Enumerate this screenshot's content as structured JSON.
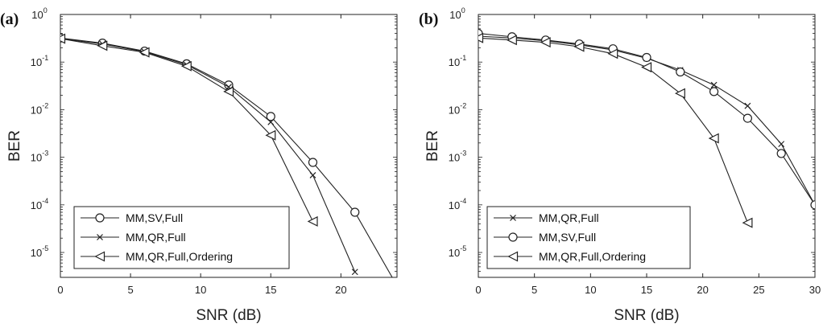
{
  "chart_data": [
    {
      "panel_label": "(a)",
      "type": "line",
      "xlabel": "SNR (dB)",
      "ylabel": "BER",
      "xlim": [
        0,
        24
      ],
      "ylim": [
        3e-06,
        1
      ],
      "yscale": "log",
      "x_ticks": [
        0,
        5,
        10,
        15,
        20
      ],
      "y_ticks": [
        1,
        0.1,
        0.01,
        0.001,
        0.0001,
        1e-05
      ],
      "y_tick_labels": [
        {
          "base": "10",
          "exp": "0"
        },
        {
          "base": "10",
          "exp": "-1"
        },
        {
          "base": "10",
          "exp": "-2"
        },
        {
          "base": "10",
          "exp": "-3"
        },
        {
          "base": "10",
          "exp": "-4"
        },
        {
          "base": "10",
          "exp": "-5"
        }
      ],
      "grid": false,
      "legend_position": "bottom-left",
      "series": [
        {
          "name": "MM,SV,Full",
          "marker": "circle",
          "x": [
            0,
            3,
            6,
            9,
            12,
            15,
            18,
            21,
            24
          ],
          "y": [
            0.32,
            0.25,
            0.17,
            0.092,
            0.033,
            0.0072,
            0.00078,
            7e-05,
            2e-06
          ]
        },
        {
          "name": "MM,QR,Full",
          "marker": "x",
          "x": [
            0,
            3,
            6,
            9,
            12,
            15,
            18,
            21
          ],
          "y": [
            0.31,
            0.24,
            0.165,
            0.088,
            0.03,
            0.0055,
            0.00042,
            3.9e-06
          ]
        },
        {
          "name": "MM,QR,Full,Ordering",
          "marker": "triangle-left",
          "x": [
            0,
            3,
            6,
            9,
            12,
            15,
            18
          ],
          "y": [
            0.31,
            0.22,
            0.16,
            0.082,
            0.024,
            0.0029,
            4.5e-05
          ]
        }
      ]
    },
    {
      "panel_label": "(b)",
      "type": "line",
      "xlabel": "SNR (dB)",
      "ylabel": "BER",
      "xlim": [
        0,
        30
      ],
      "ylim": [
        3e-06,
        1
      ],
      "yscale": "log",
      "x_ticks": [
        0,
        5,
        10,
        15,
        20,
        25,
        30
      ],
      "y_ticks": [
        1,
        0.1,
        0.01,
        0.001,
        0.0001,
        1e-05
      ],
      "y_tick_labels": [
        {
          "base": "10",
          "exp": "0"
        },
        {
          "base": "10",
          "exp": "-1"
        },
        {
          "base": "10",
          "exp": "-2"
        },
        {
          "base": "10",
          "exp": "-3"
        },
        {
          "base": "10",
          "exp": "-4"
        },
        {
          "base": "10",
          "exp": "-5"
        }
      ],
      "grid": false,
      "legend_position": "bottom-left",
      "series": [
        {
          "name": "MM,QR,Full",
          "marker": "x",
          "x": [
            0,
            3,
            6,
            9,
            12,
            15,
            18,
            21,
            24,
            27,
            30
          ],
          "y": [
            0.35,
            0.32,
            0.28,
            0.23,
            0.18,
            0.12,
            0.068,
            0.033,
            0.012,
            0.0019,
            0.0001
          ]
        },
        {
          "name": "MM,SV,Full",
          "marker": "circle",
          "x": [
            0,
            3,
            6,
            9,
            12,
            15,
            18,
            21,
            24,
            27,
            30
          ],
          "y": [
            0.4,
            0.34,
            0.29,
            0.24,
            0.19,
            0.125,
            0.062,
            0.024,
            0.0066,
            0.0012,
            0.0001
          ]
        },
        {
          "name": "MM,QR,Full,Ordering",
          "marker": "triangle-left",
          "x": [
            0,
            3,
            6,
            9,
            12,
            15,
            18,
            21,
            24
          ],
          "y": [
            0.32,
            0.29,
            0.26,
            0.21,
            0.15,
            0.078,
            0.022,
            0.0025,
            4.2e-05
          ]
        }
      ]
    }
  ]
}
